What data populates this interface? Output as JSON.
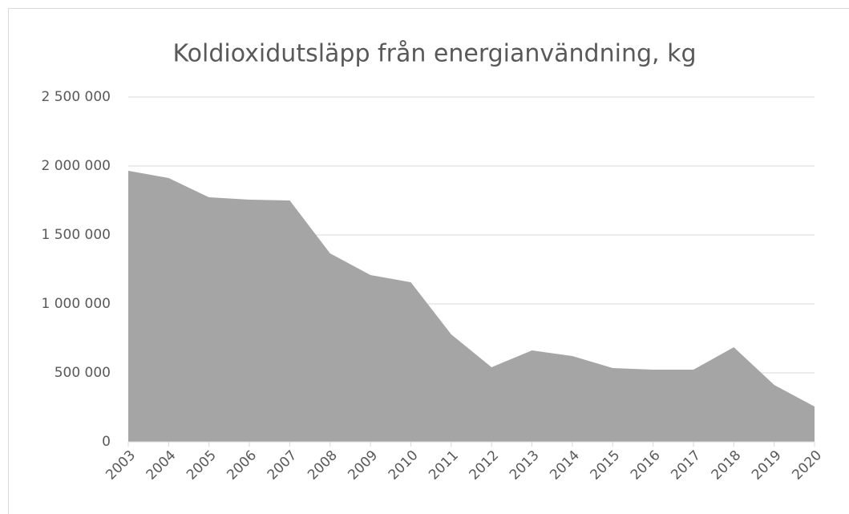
{
  "chart_data": {
    "type": "area",
    "title": "Koldioxidutsläpp från energianvändning, kg",
    "categories": [
      "2003",
      "2004",
      "2005",
      "2006",
      "2007",
      "2008",
      "2009",
      "2010",
      "2011",
      "2012",
      "2013",
      "2014",
      "2015",
      "2016",
      "2017",
      "2018",
      "2019",
      "2020"
    ],
    "values": [
      1965000,
      1913000,
      1773000,
      1756000,
      1750000,
      1366000,
      1209000,
      1157000,
      779000,
      541000,
      663000,
      622000,
      535000,
      523000,
      523000,
      686000,
      413000,
      256000
    ],
    "color": "#a5a5a5",
    "ylim": [
      0,
      2500000
    ],
    "yticks": [
      0,
      {
        "value": 500000,
        "label": "500 000"
      },
      {
        "value": 1000000,
        "label": "1 000 000"
      },
      {
        "value": 1500000,
        "label": "1 500 000"
      },
      {
        "value": 2000000,
        "label": "2 000 000"
      },
      {
        "value": 2500000,
        "label": "2 500 000"
      }
    ],
    "grid": true
  }
}
